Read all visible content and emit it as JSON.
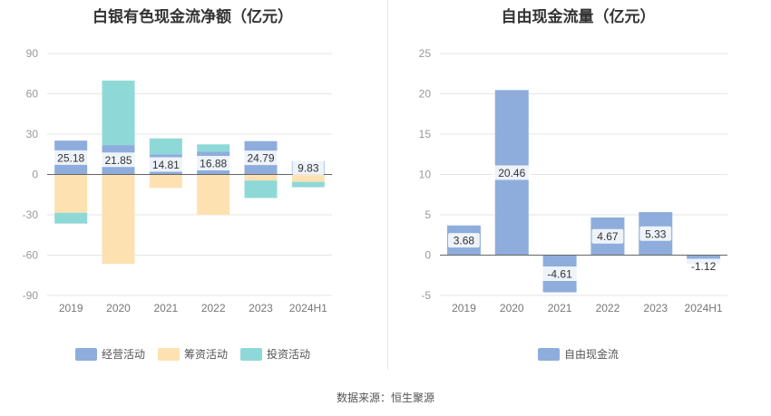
{
  "source": "数据来源：恒生聚源",
  "colors": {
    "operating": "#8eaddc",
    "financing": "#fde1b0",
    "investing": "#8fd8d8",
    "fcf": "#8eaddc",
    "grid": "#e6e6e6",
    "axis": "#999999",
    "label_bg": "#ffffff"
  },
  "chart_data": [
    {
      "type": "bar",
      "stacked": true,
      "title": "白银有色现金流净额（亿元）",
      "categories": [
        "2019",
        "2020",
        "2021",
        "2022",
        "2023",
        "2024H1"
      ],
      "ylim": [
        -90,
        90
      ],
      "yticks": [
        90,
        60,
        30,
        0,
        -30,
        -60,
        -90
      ],
      "grid": true,
      "legend_position": "bottom",
      "series": [
        {
          "name": "经营活动",
          "values": [
            25.18,
            21.85,
            14.81,
            16.88,
            24.79,
            9.83
          ]
        },
        {
          "name": "筹资活动",
          "values": [
            -28.5,
            -66.5,
            -10.0,
            -30.0,
            -4.5,
            -5.5
          ]
        },
        {
          "name": "投资活动",
          "values": [
            -8.0,
            48.0,
            12.0,
            5.5,
            -13.0,
            -4.0
          ]
        }
      ],
      "data_labels": [
        "25.18",
        "21.85",
        "14.81",
        "16.88",
        "24.79",
        "9.83"
      ]
    },
    {
      "type": "bar",
      "title": "自由现金流量（亿元）",
      "categories": [
        "2019",
        "2020",
        "2021",
        "2022",
        "2023",
        "2024H1"
      ],
      "ylim": [
        -5,
        25
      ],
      "yticks": [
        25,
        20,
        15,
        10,
        5,
        0,
        -5
      ],
      "grid": true,
      "legend_position": "bottom",
      "series": [
        {
          "name": "自由现金流",
          "values": [
            3.68,
            20.46,
            -4.61,
            4.67,
            5.33,
            -1.12
          ]
        }
      ],
      "data_labels": [
        "3.68",
        "20.46",
        "-4.61",
        "4.67",
        "5.33",
        "-1.12"
      ]
    }
  ]
}
